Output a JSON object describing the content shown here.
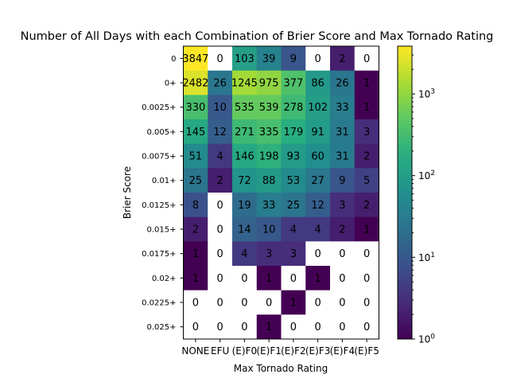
{
  "chart_data": {
    "type": "heatmap",
    "title": "Number of All Days with each Combination of Brier Score and Max Tornado Rating",
    "xlabel": "Max Tornado Rating",
    "ylabel": "Brier Score",
    "x_categories": [
      "NONE",
      "EFU",
      "(E)F0",
      "(E)F1",
      "(E)F2",
      "(E)F3",
      "(E)F4",
      "(E)F5"
    ],
    "y_categories": [
      "0",
      "0+",
      "0.0025+",
      "0.005+",
      "0.0075+",
      "0.01+",
      "0.0125+",
      "0.015+",
      "0.0175+",
      "0.02+",
      "0.0225+",
      "0.025+"
    ],
    "values": [
      [
        3847,
        0,
        103,
        39,
        9,
        0,
        2,
        0
      ],
      [
        2482,
        26,
        1245,
        975,
        377,
        86,
        26,
        1
      ],
      [
        330,
        10,
        535,
        539,
        278,
        102,
        33,
        1
      ],
      [
        145,
        12,
        271,
        335,
        179,
        91,
        31,
        3
      ],
      [
        51,
        4,
        146,
        198,
        93,
        60,
        31,
        2
      ],
      [
        25,
        2,
        72,
        88,
        53,
        27,
        9,
        5
      ],
      [
        8,
        0,
        19,
        33,
        25,
        12,
        3,
        2
      ],
      [
        2,
        0,
        14,
        10,
        4,
        4,
        2,
        1
      ],
      [
        1,
        0,
        4,
        3,
        3,
        0,
        0,
        0
      ],
      [
        1,
        0,
        0,
        1,
        0,
        1,
        0,
        0
      ],
      [
        0,
        0,
        0,
        0,
        1,
        0,
        0,
        0
      ],
      [
        0,
        0,
        0,
        1,
        0,
        0,
        0,
        0
      ]
    ],
    "color_scale": "log",
    "colormap": "viridis",
    "zero_color": "#ffffff",
    "colorbar": {
      "range": [
        1,
        3847
      ],
      "ticks": [
        1,
        10,
        100,
        1000
      ],
      "tick_labels": [
        "10^0",
        "10^1",
        "10^2",
        "10^3"
      ]
    }
  }
}
